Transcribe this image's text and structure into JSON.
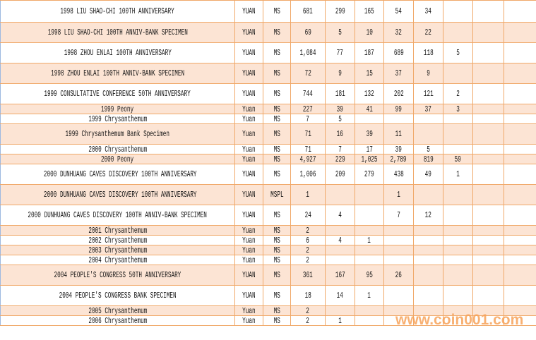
{
  "rows": [
    {
      "name": "1998 LIU SHAO-CHI 100TH ANNIVERSARY",
      "unit": "YUAN",
      "grade": "MS",
      "v": [
        "681",
        "299",
        "165",
        "54",
        "34",
        "",
        "",
        ""
      ]
    },
    {
      "name": "1998 LIU SHAO-CHI 100TH ANNIV-BANK SPECIMEN",
      "unit": "YUAN",
      "grade": "MS",
      "v": [
        "69",
        "5",
        "10",
        "32",
        "22",
        "",
        "",
        ""
      ]
    },
    {
      "name": "1998 ZHOU ENLAI 100TH ANNIVERSARY",
      "unit": "YUAN",
      "grade": "MS",
      "v": [
        "1,084",
        "77",
        "187",
        "689",
        "118",
        "5",
        "",
        ""
      ]
    },
    {
      "name": "1998 ZHOU ENLAI 100TH ANNIV-BANK SPECIMEN",
      "unit": "YUAN",
      "grade": "MS",
      "v": [
        "72",
        "9",
        "15",
        "37",
        "9",
        "",
        "",
        ""
      ]
    },
    {
      "name": "1999 CONSULTATIVE CONFERENCE 50TH ANNIVERSARY",
      "unit": "YUAN",
      "grade": "MS",
      "v": [
        "744",
        "181",
        "132",
        "202",
        "121",
        "2",
        "",
        ""
      ]
    },
    {
      "name": "1999 Peony",
      "unit": "Yuan",
      "grade": "MS",
      "v": [
        "227",
        "39",
        "41",
        "99",
        "37",
        "3",
        "",
        ""
      ]
    },
    {
      "name": "1999 Chrysanthemum",
      "unit": "Yuan",
      "grade": "MS",
      "v": [
        "7",
        "5",
        "",
        "",
        "",
        "",
        "",
        ""
      ]
    },
    {
      "name": "1999 Chrysanthemum Bank Specimen",
      "unit": "Yuan",
      "grade": "MS",
      "v": [
        "71",
        "16",
        "39",
        "11",
        "",
        "",
        "",
        ""
      ]
    },
    {
      "name": "2000 Chrysanthemum",
      "unit": "Yuan",
      "grade": "MS",
      "v": [
        "71",
        "7",
        "17",
        "39",
        "5",
        "",
        "",
        ""
      ]
    },
    {
      "name": "2000 Peony",
      "unit": "Yuan",
      "grade": "MS",
      "v": [
        "4,927",
        "229",
        "1,025",
        "2,789",
        "819",
        "59",
        "",
        ""
      ]
    },
    {
      "name": "2000 DUNHUANG CAVES DISCOVERY 100TH ANNIVERSARY",
      "unit": "YUAN",
      "grade": "MS",
      "v": [
        "1,006",
        "209",
        "279",
        "438",
        "49",
        "1",
        "",
        ""
      ]
    },
    {
      "name": "2000 DUNHUANG CAVES DISCOVERY 100TH ANNIVERSARY",
      "unit": "YUAN",
      "grade": "MSPL",
      "v": [
        "1",
        "",
        "",
        "1",
        "",
        "",
        "",
        ""
      ]
    },
    {
      "name": "2000 DUNHUANG CAVES DISCOVERY 100TH ANNIV-BANK SPECIMEN",
      "unit": "YUAN",
      "grade": "MS",
      "v": [
        "24",
        "4",
        "",
        "7",
        "12",
        "",
        "",
        ""
      ]
    },
    {
      "name": "2001 Chrysanthemum",
      "unit": "Yuan",
      "grade": "MS",
      "v": [
        "2",
        "",
        "",
        "",
        "",
        "",
        "",
        ""
      ]
    },
    {
      "name": "2002 Chrysanthemum",
      "unit": "Yuan",
      "grade": "MS",
      "v": [
        "6",
        "4",
        "1",
        "",
        "",
        "",
        "",
        ""
      ]
    },
    {
      "name": "2003 Chrysanthemum",
      "unit": "Yuan",
      "grade": "MS",
      "v": [
        "2",
        "",
        "",
        "",
        "",
        "",
        "",
        ""
      ]
    },
    {
      "name": "2004 Chrysanthemum",
      "unit": "Yuan",
      "grade": "MS",
      "v": [
        "2",
        "",
        "",
        "",
        "",
        "",
        "",
        ""
      ]
    },
    {
      "name": "2004 PEOPLE'S CONGRESS 50TH ANNIVERSARY",
      "unit": "YUAN",
      "grade": "MS",
      "v": [
        "361",
        "167",
        "95",
        "26",
        "",
        "",
        "",
        ""
      ]
    },
    {
      "name": "2004 PEOPLE'S CONGRESS BANK SPECIMEN",
      "unit": "YUAN",
      "grade": "MS",
      "v": [
        "18",
        "14",
        "1",
        "",
        "",
        "",
        "",
        ""
      ]
    },
    {
      "name": "2005 Chrysanthemum",
      "unit": "Yuan",
      "grade": "MS",
      "v": [
        "2",
        "",
        "",
        "",
        "",
        "",
        "",
        ""
      ]
    },
    {
      "name": "2006 Chrysanthemum",
      "unit": "Yuan",
      "grade": "MS",
      "v": [
        "2",
        "1",
        "",
        "",
        "",
        "",
        "",
        ""
      ]
    }
  ],
  "watermark": "www.coin001.com",
  "colors": {
    "border": "#f0a868",
    "alt_row": "#fce4d4",
    "watermark": "#f7a35a"
  }
}
